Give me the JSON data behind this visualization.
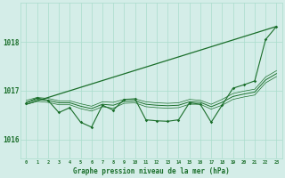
{
  "x": [
    0,
    1,
    2,
    3,
    4,
    5,
    6,
    7,
    8,
    9,
    10,
    11,
    12,
    13,
    14,
    15,
    16,
    17,
    18,
    19,
    20,
    21,
    22,
    23
  ],
  "pressure_line": [
    1016.75,
    1016.85,
    1016.8,
    1016.55,
    1016.65,
    1016.35,
    1016.25,
    1016.7,
    1016.6,
    1016.82,
    1016.83,
    1016.4,
    1016.38,
    1016.37,
    1016.4,
    1016.75,
    1016.72,
    1016.35,
    1016.7,
    1017.05,
    1017.12,
    1017.2,
    1018.05,
    1018.32
  ],
  "trend_y": [
    1016.72,
    1018.32
  ],
  "trend_x": [
    0,
    23
  ],
  "smooth_line": [
    1016.76,
    1016.82,
    1016.8,
    1016.75,
    1016.75,
    1016.68,
    1016.63,
    1016.72,
    1016.7,
    1016.78,
    1016.79,
    1016.72,
    1016.7,
    1016.69,
    1016.7,
    1016.77,
    1016.76,
    1016.67,
    1016.76,
    1016.88,
    1016.93,
    1016.97,
    1017.22,
    1017.35
  ],
  "upper_env": [
    1016.8,
    1016.86,
    1016.84,
    1016.79,
    1016.79,
    1016.73,
    1016.68,
    1016.77,
    1016.76,
    1016.82,
    1016.83,
    1016.77,
    1016.75,
    1016.74,
    1016.75,
    1016.82,
    1016.8,
    1016.72,
    1016.82,
    1016.94,
    1016.99,
    1017.03,
    1017.28,
    1017.41
  ],
  "lower_env": [
    1016.72,
    1016.78,
    1016.76,
    1016.71,
    1016.71,
    1016.63,
    1016.58,
    1016.67,
    1016.64,
    1016.74,
    1016.75,
    1016.67,
    1016.65,
    1016.64,
    1016.65,
    1016.72,
    1016.72,
    1016.62,
    1016.7,
    1016.82,
    1016.87,
    1016.91,
    1017.16,
    1017.29
  ],
  "bg_color": "#d4ede8",
  "grid_color": "#aaddcc",
  "line_color": "#1a6e2a",
  "text_color": "#1a6e2a",
  "xlabel": "Graphe pression niveau de la mer (hPa)",
  "yticks": [
    1016,
    1017,
    1018
  ],
  "ylim": [
    1015.6,
    1018.8
  ],
  "xlim": [
    -0.5,
    23.5
  ]
}
